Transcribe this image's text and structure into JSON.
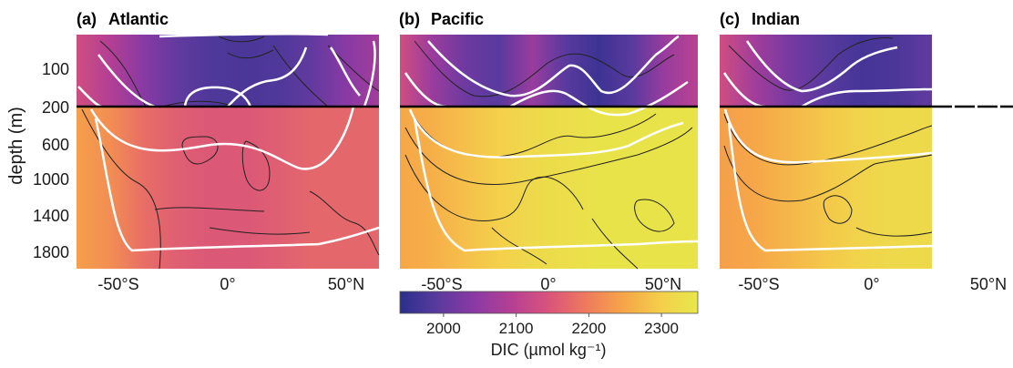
{
  "chart_data": {
    "type": "heatmap",
    "ylabel": "depth (m)",
    "y_ticks": [
      "100",
      "200",
      "600",
      "1000",
      "1400",
      "1800"
    ],
    "x_ticks": [
      "-50°S",
      "0°",
      "50°N"
    ],
    "y_split_depth": 200,
    "colorbar": {
      "label": "DIC (µmol kg⁻¹)",
      "ticks": [
        2000,
        2100,
        2200,
        2300
      ],
      "range": [
        1940,
        2350
      ],
      "colors": [
        "#2a2f8c",
        "#5a3a9e",
        "#8a3aa4",
        "#b63f93",
        "#d9547a",
        "#ef7a5d",
        "#f6a548",
        "#f4cf4b",
        "#e6e84a"
      ]
    },
    "panels": [
      {
        "letter": "(a)",
        "name": "Atlantic",
        "lat_range": [
          -65,
          65
        ],
        "data_lat_range": [
          -65,
          65
        ],
        "surface_dic": [
          2130,
          2090,
          2040,
          2000,
          1980,
          1975,
          1980,
          2000,
          2040,
          2070
        ],
        "deep_dic": [
          2240,
          2220,
          2180,
          2160,
          2150,
          2150,
          2160,
          2170,
          2170,
          2170
        ]
      },
      {
        "letter": "(b)",
        "name": "Pacific",
        "lat_range": [
          -65,
          65
        ],
        "data_lat_range": [
          -65,
          65
        ],
        "surface_dic": [
          2130,
          2060,
          2010,
          1990,
          2060,
          1990,
          1960,
          1990,
          2060,
          2100
        ],
        "deep_dic": [
          2250,
          2260,
          2280,
          2300,
          2320,
          2330,
          2340,
          2340,
          2340,
          2340
        ]
      },
      {
        "letter": "(c)",
        "name": "Indian",
        "lat_range": [
          -65,
          65
        ],
        "data_lat_range": [
          -65,
          25
        ],
        "surface_dic": [
          2130,
          2070,
          2020,
          1990,
          1970,
          1975,
          2000
        ],
        "deep_dic": [
          2240,
          2250,
          2270,
          2290,
          2310,
          2320,
          2320
        ]
      }
    ]
  }
}
